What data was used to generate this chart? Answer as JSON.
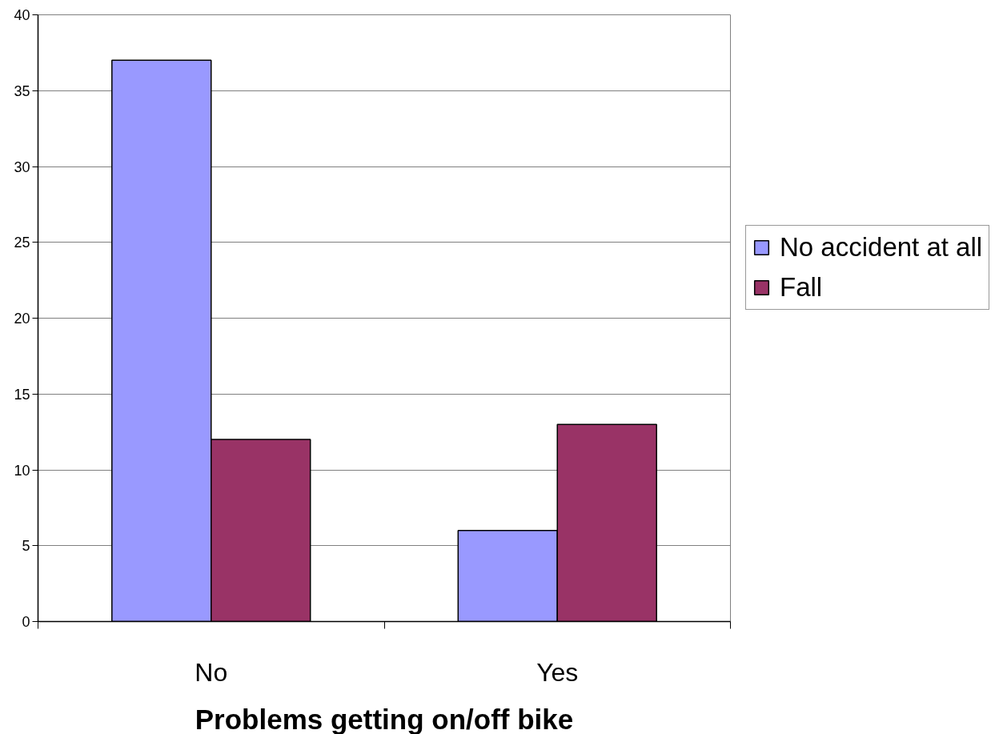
{
  "chart_data": {
    "type": "bar",
    "xlabel": "Problems getting on/off bike",
    "categories": [
      "No",
      "Yes"
    ],
    "series": [
      {
        "name": "No accident at all",
        "color": "#9999ff",
        "values": [
          37,
          6
        ]
      },
      {
        "name": "Fall",
        "color": "#993366",
        "values": [
          12,
          13
        ]
      }
    ],
    "ylim": [
      0,
      40
    ],
    "yticks": [
      0,
      5,
      10,
      15,
      20,
      25,
      30,
      35,
      40
    ],
    "grid": "y",
    "legend": "right"
  }
}
